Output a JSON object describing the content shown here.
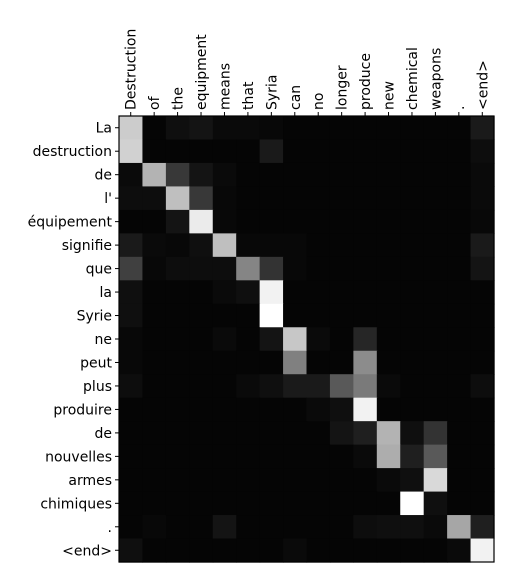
{
  "chart_data": {
    "type": "heatmap",
    "x_labels": [
      "Destruction",
      "of",
      "the",
      "equipment",
      "means",
      "that",
      "Syria",
      "can",
      "no",
      "longer",
      "produce",
      "new",
      "chemical",
      "weapons",
      ".",
      "<end>"
    ],
    "y_labels": [
      "La",
      "destruction",
      "de",
      "l'",
      "équipement",
      "signifie",
      "que",
      "la",
      "Syrie",
      "ne",
      "peut",
      "plus",
      "produire",
      "de",
      "nouvelles",
      "armes",
      "chimiques",
      ".",
      "<end>"
    ],
    "colormap": "grayscale (black = 0, white = 1)",
    "values": [
      [
        0.8,
        0.02,
        0.06,
        0.08,
        0.04,
        0.04,
        0.03,
        0.02,
        0.02,
        0.02,
        0.02,
        0.02,
        0.02,
        0.02,
        0.02,
        0.1
      ],
      [
        0.82,
        0.02,
        0.02,
        0.02,
        0.02,
        0.02,
        0.1,
        0.02,
        0.02,
        0.02,
        0.02,
        0.02,
        0.02,
        0.02,
        0.02,
        0.05
      ],
      [
        0.04,
        0.7,
        0.22,
        0.08,
        0.04,
        0.02,
        0.02,
        0.02,
        0.02,
        0.02,
        0.02,
        0.02,
        0.02,
        0.02,
        0.02,
        0.04
      ],
      [
        0.05,
        0.05,
        0.75,
        0.22,
        0.03,
        0.02,
        0.02,
        0.02,
        0.02,
        0.02,
        0.02,
        0.02,
        0.02,
        0.02,
        0.02,
        0.04
      ],
      [
        0.02,
        0.02,
        0.08,
        0.92,
        0.03,
        0.02,
        0.02,
        0.02,
        0.02,
        0.02,
        0.02,
        0.02,
        0.02,
        0.02,
        0.02,
        0.03
      ],
      [
        0.1,
        0.04,
        0.03,
        0.06,
        0.75,
        0.03,
        0.03,
        0.03,
        0.02,
        0.02,
        0.02,
        0.02,
        0.02,
        0.02,
        0.02,
        0.1
      ],
      [
        0.25,
        0.03,
        0.05,
        0.05,
        0.05,
        0.52,
        0.2,
        0.03,
        0.02,
        0.02,
        0.02,
        0.02,
        0.02,
        0.02,
        0.02,
        0.08
      ],
      [
        0.06,
        0.02,
        0.02,
        0.02,
        0.04,
        0.06,
        0.95,
        0.02,
        0.02,
        0.02,
        0.02,
        0.02,
        0.02,
        0.02,
        0.02,
        0.02
      ],
      [
        0.06,
        0.02,
        0.02,
        0.02,
        0.02,
        0.02,
        1.0,
        0.02,
        0.02,
        0.02,
        0.02,
        0.02,
        0.02,
        0.02,
        0.02,
        0.02
      ],
      [
        0.03,
        0.02,
        0.02,
        0.02,
        0.04,
        0.02,
        0.08,
        0.78,
        0.04,
        0.02,
        0.15,
        0.02,
        0.02,
        0.02,
        0.02,
        0.02
      ],
      [
        0.03,
        0.02,
        0.02,
        0.02,
        0.02,
        0.02,
        0.02,
        0.5,
        0.02,
        0.02,
        0.55,
        0.02,
        0.02,
        0.02,
        0.02,
        0.02
      ],
      [
        0.05,
        0.02,
        0.02,
        0.02,
        0.02,
        0.04,
        0.06,
        0.1,
        0.1,
        0.35,
        0.48,
        0.04,
        0.02,
        0.02,
        0.02,
        0.05
      ],
      [
        0.02,
        0.02,
        0.02,
        0.02,
        0.02,
        0.02,
        0.02,
        0.02,
        0.04,
        0.06,
        0.95,
        0.02,
        0.02,
        0.02,
        0.02,
        0.02
      ],
      [
        0.02,
        0.02,
        0.02,
        0.02,
        0.02,
        0.02,
        0.02,
        0.02,
        0.02,
        0.08,
        0.12,
        0.7,
        0.06,
        0.2,
        0.02,
        0.02
      ],
      [
        0.02,
        0.02,
        0.02,
        0.02,
        0.02,
        0.02,
        0.02,
        0.02,
        0.02,
        0.02,
        0.04,
        0.68,
        0.12,
        0.35,
        0.02,
        0.02
      ],
      [
        0.02,
        0.02,
        0.02,
        0.02,
        0.02,
        0.02,
        0.02,
        0.02,
        0.02,
        0.02,
        0.02,
        0.04,
        0.06,
        0.85,
        0.02,
        0.02
      ],
      [
        0.02,
        0.02,
        0.02,
        0.02,
        0.02,
        0.02,
        0.02,
        0.02,
        0.02,
        0.02,
        0.02,
        0.02,
        1.0,
        0.06,
        0.02,
        0.02
      ],
      [
        0.02,
        0.03,
        0.02,
        0.02,
        0.08,
        0.02,
        0.02,
        0.02,
        0.02,
        0.02,
        0.05,
        0.06,
        0.06,
        0.04,
        0.65,
        0.12
      ],
      [
        0.06,
        0.02,
        0.02,
        0.02,
        0.02,
        0.02,
        0.02,
        0.04,
        0.02,
        0.02,
        0.02,
        0.02,
        0.02,
        0.02,
        0.04,
        0.95
      ]
    ]
  }
}
